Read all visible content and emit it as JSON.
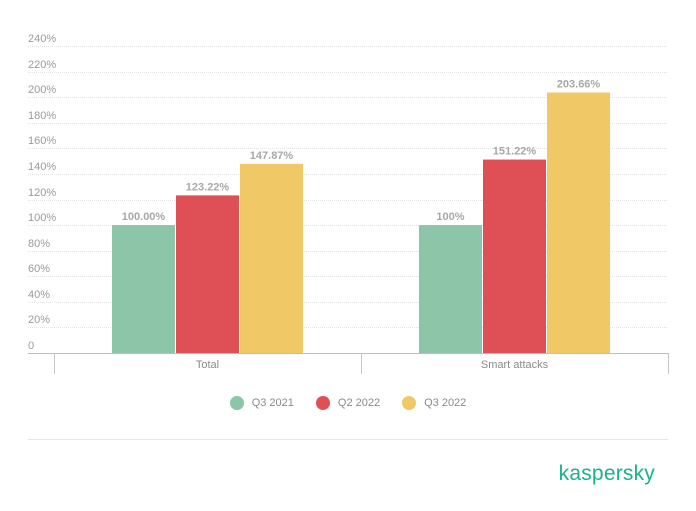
{
  "chart_data": {
    "type": "bar",
    "categories": [
      "Total",
      "Smart attacks"
    ],
    "series": [
      {
        "name": "Q3 2021",
        "values": [
          100.0,
          100
        ],
        "labels": [
          "100.00%",
          "100%"
        ],
        "color": "#8dc5a9"
      },
      {
        "name": "Q2 2022",
        "values": [
          123.22,
          151.22
        ],
        "labels": [
          "123.22%",
          "151.22%"
        ],
        "color": "#de5056"
      },
      {
        "name": "Q3 2022",
        "values": [
          147.87,
          203.66
        ],
        "labels": [
          "147.87%",
          "203.66%"
        ],
        "color": "#f0c966"
      }
    ],
    "ylim": [
      0,
      240
    ],
    "yticks": [
      0,
      20,
      40,
      60,
      80,
      100,
      120,
      140,
      160,
      180,
      200,
      220,
      240
    ],
    "ytick_labels": [
      "0",
      "20%",
      "40%",
      "60%",
      "80%",
      "100%",
      "120%",
      "140%",
      "160%",
      "180%",
      "200%",
      "220%",
      "240%"
    ],
    "grid": true,
    "legend_position": "bottom"
  },
  "brand": {
    "logo_text": "kaspersky",
    "color": "#19b28c"
  }
}
